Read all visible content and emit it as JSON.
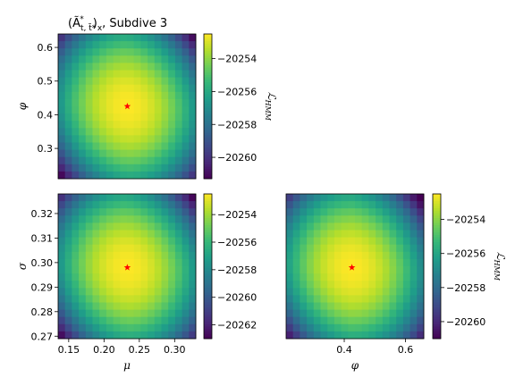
{
  "title_prefix": "(Ã",
  "title_sub": "t, t̃*",
  "title_sup": "*",
  "title_mid": ")",
  "title_sub2": "x",
  "title_suffix": ", Subdive 3",
  "colormap": [
    "#440154",
    "#482878",
    "#3e4989",
    "#31688e",
    "#26828e",
    "#1f9e89",
    "#35b779",
    "#6ece58",
    "#b5de2b",
    "#fde725"
  ],
  "marker_color": "#ff0000",
  "chart_data": [
    {
      "type": "heatmap",
      "id": "phi-vs-mu",
      "xlabel": "",
      "ylabel": "φ",
      "x_range": [
        0.135,
        0.33
      ],
      "y_range": [
        0.21,
        0.64
      ],
      "y_ticks": [
        0.3,
        0.4,
        0.5,
        0.6
      ],
      "y_tick_labels": [
        "0.3",
        "0.4",
        "0.5",
        "0.6"
      ],
      "x_ticks": [],
      "x_tick_labels": [],
      "max_point": [
        0.233,
        0.425
      ],
      "grid_cells": [
        20,
        20
      ],
      "value_range": [
        -20261.3,
        -20252.5
      ],
      "colorbar_ticks": [
        -20254,
        -20256,
        -20258,
        -20260
      ],
      "colorbar_tick_labels": [
        "−20254",
        "−20256",
        "−20258",
        "−20260"
      ],
      "colorbar_label": "ℒ",
      "colorbar_label_sub": "HMM"
    },
    {
      "type": "heatmap",
      "id": "sigma-vs-mu",
      "xlabel": "μ",
      "ylabel": "σ",
      "x_range": [
        0.135,
        0.33
      ],
      "y_range": [
        0.269,
        0.328
      ],
      "x_ticks": [
        0.15,
        0.2,
        0.25,
        0.3
      ],
      "x_tick_labels": [
        "0.15",
        "0.20",
        "0.25",
        "0.30"
      ],
      "y_ticks": [
        0.27,
        0.28,
        0.29,
        0.3,
        0.31,
        0.32
      ],
      "y_tick_labels": [
        "0.27",
        "0.28",
        "0.29",
        "0.30",
        "0.31",
        "0.32"
      ],
      "max_point": [
        0.233,
        0.298
      ],
      "grid_cells": [
        20,
        20
      ],
      "value_range": [
        -20263.0,
        -20252.5
      ],
      "colorbar_ticks": [
        -20254,
        -20256,
        -20258,
        -20260,
        -20262
      ],
      "colorbar_tick_labels": [
        "−20254",
        "−20256",
        "−20258",
        "−20260",
        "−20262"
      ],
      "colorbar_label": "",
      "colorbar_label_sub": ""
    },
    {
      "type": "heatmap",
      "id": "sigma-vs-phi",
      "xlabel": "φ",
      "ylabel": "",
      "x_range": [
        0.21,
        0.66
      ],
      "y_range": [
        0.269,
        0.328
      ],
      "x_ticks": [
        0.4,
        0.6
      ],
      "x_tick_labels": [
        "0.4",
        "0.6"
      ],
      "y_ticks": [],
      "y_tick_labels": [],
      "max_point": [
        0.425,
        0.298
      ],
      "grid_cells": [
        20,
        20
      ],
      "value_range": [
        -20261.0,
        -20252.5
      ],
      "colorbar_ticks": [
        -20254,
        -20256,
        -20258,
        -20260
      ],
      "colorbar_tick_labels": [
        "−20254",
        "−20256",
        "−20258",
        "−20260"
      ],
      "colorbar_label": "ℒ",
      "colorbar_label_sub": "HMM"
    }
  ]
}
